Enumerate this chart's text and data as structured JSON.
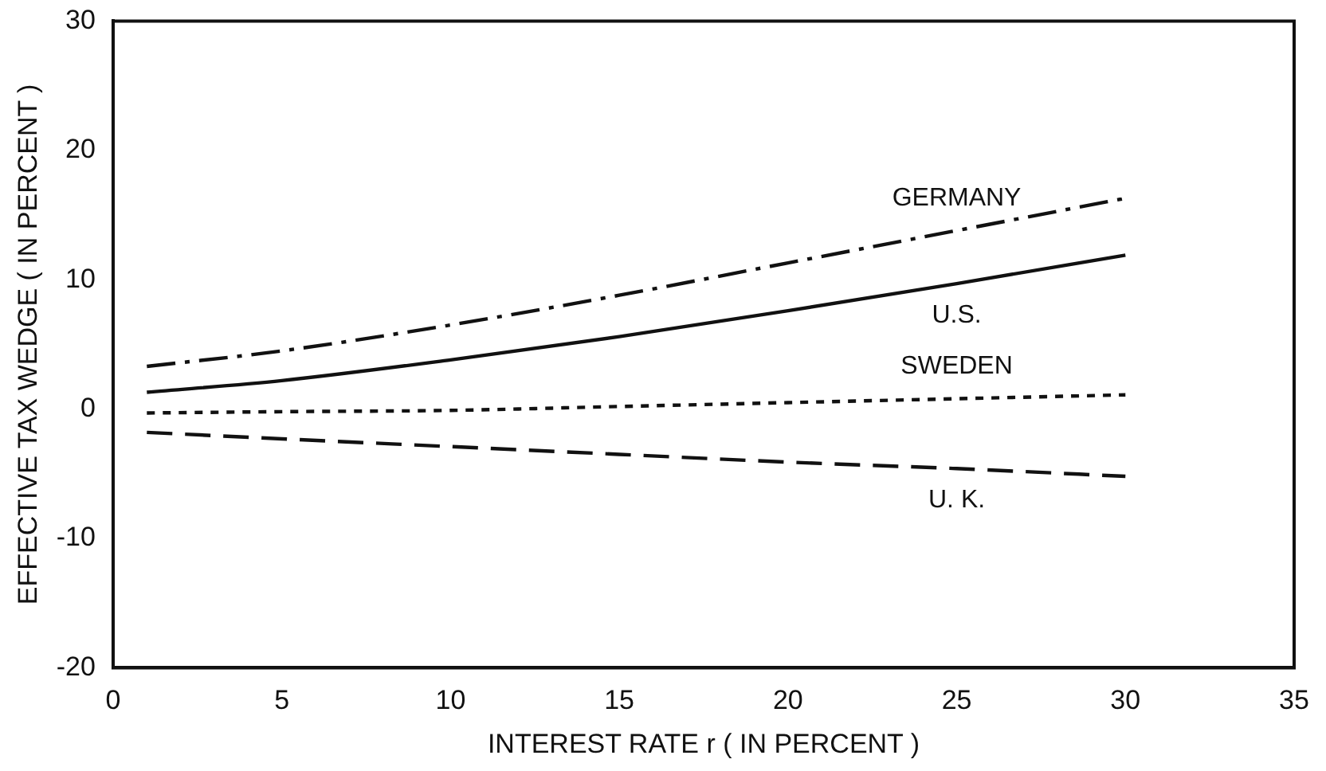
{
  "chart_data": {
    "type": "line",
    "xlabel": "INTEREST RATE r ( IN PERCENT )",
    "ylabel": "EFFECTIVE TAX WEDGE ( IN PERCENT )",
    "x": [
      1,
      5,
      10,
      15,
      20,
      25,
      30
    ],
    "series": [
      {
        "name": "GERMANY",
        "color": "#111111",
        "line_style": "dashdot",
        "values": [
          3.3,
          4.5,
          6.5,
          8.8,
          11.3,
          13.8,
          16.3
        ]
      },
      {
        "name": "U.S.",
        "color": "#111111",
        "line_style": "solid",
        "values": [
          1.3,
          2.2,
          3.8,
          5.6,
          7.6,
          9.7,
          11.9
        ]
      },
      {
        "name": "SWEDEN",
        "color": "#111111",
        "line_style": "dotted",
        "values": [
          -0.3,
          -0.2,
          -0.1,
          0.2,
          0.5,
          0.8,
          1.1
        ]
      },
      {
        "name": "U. K.",
        "color": "#111111",
        "line_style": "dashed",
        "values": [
          -1.8,
          -2.3,
          -2.9,
          -3.5,
          -4.1,
          -4.6,
          -5.2
        ]
      }
    ],
    "xlim": [
      0,
      35
    ],
    "xticks": [
      0,
      5,
      10,
      15,
      20,
      25,
      30,
      35
    ],
    "ylim": [
      -20,
      30
    ],
    "yticks": [
      -20,
      -10,
      0,
      10,
      20,
      30
    ],
    "grid": false,
    "legend": false,
    "marker": "none"
  }
}
